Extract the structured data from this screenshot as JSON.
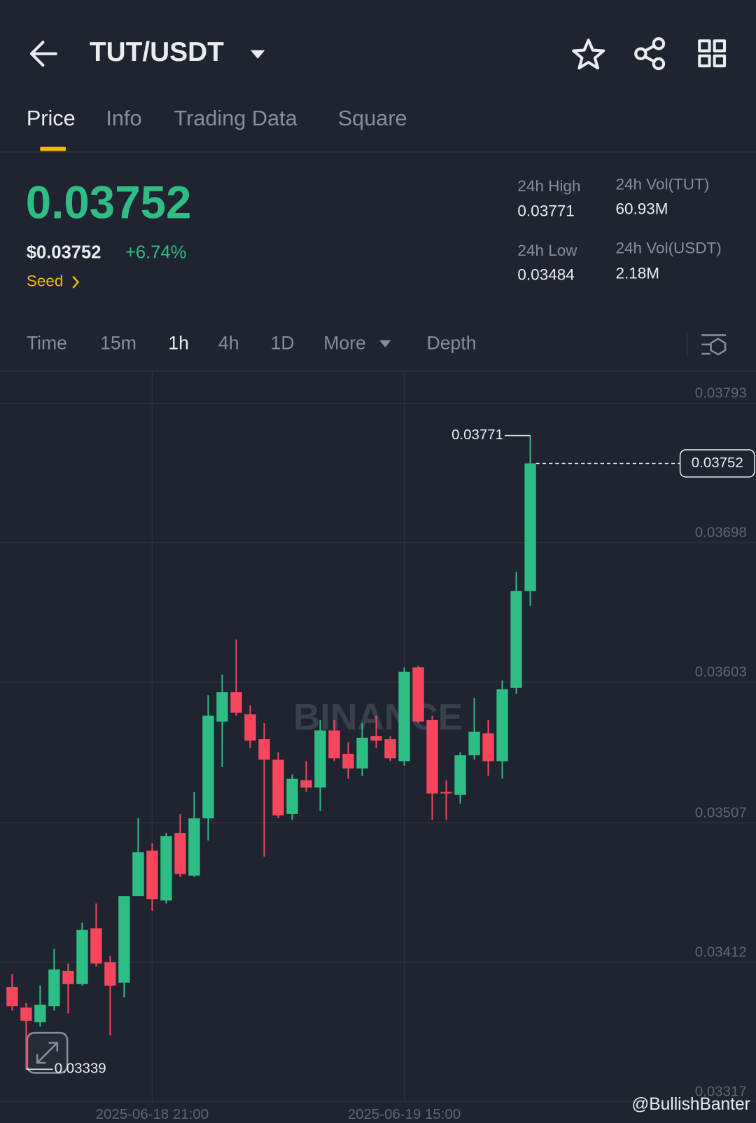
{
  "header": {
    "title": "TUT/USDT",
    "tabs": [
      "Price",
      "Info",
      "Trading Data",
      "Square"
    ]
  },
  "ticker": {
    "price": "0.03752",
    "usd_price": "$0.03752",
    "change": "+6.74%",
    "tag": "Seed",
    "stats": [
      {
        "label": "24h High",
        "value": "0.03771"
      },
      {
        "label": "24h Vol(TUT)",
        "value": "60.93M"
      },
      {
        "label": "24h Low",
        "value": "0.03484"
      },
      {
        "label": "24h Vol(USDT)",
        "value": "2.18M"
      }
    ]
  },
  "intervals": [
    "Time",
    "15m",
    "1h",
    "4h",
    "1D",
    "More",
    "Depth"
  ],
  "chart_data": {
    "type": "candlestick",
    "categories": [
      null,
      null,
      null,
      null,
      null,
      null,
      null,
      null,
      null,
      null,
      "2025-06-18 21:00",
      null,
      null,
      null,
      null,
      null,
      null,
      null,
      null,
      null,
      null,
      null,
      null,
      null,
      null,
      null,
      null,
      null,
      "2025-06-19 15:00",
      null,
      null,
      null,
      null,
      null,
      null,
      null,
      null,
      null
    ],
    "open": [
      0.03395,
      0.03381,
      0.03371,
      0.03382,
      0.03406,
      0.03397,
      0.03435,
      0.03412,
      0.03398,
      0.03457,
      0.03488,
      0.03454,
      0.035,
      0.03471,
      0.0351,
      0.03576,
      0.03596,
      0.03581,
      0.03564,
      0.0355,
      0.03513,
      0.03536,
      0.03531,
      0.0357,
      0.03554,
      0.03544,
      0.03566,
      0.03564,
      0.03549,
      0.03613,
      0.03577,
      0.03528,
      0.03526,
      0.03553,
      0.03568,
      0.03549,
      0.03599,
      0.03665
    ],
    "high": [
      0.03404,
      0.03384,
      0.03396,
      0.03421,
      0.03411,
      0.03439,
      0.03452,
      0.03416,
      0.03457,
      0.0351,
      0.03493,
      0.035,
      0.03513,
      0.03528,
      0.03594,
      0.03608,
      0.03632,
      0.03587,
      0.03575,
      0.03555,
      0.0354,
      0.03549,
      0.03577,
      0.03577,
      0.03562,
      0.03575,
      0.0358,
      0.03566,
      0.03613,
      0.03614,
      0.0358,
      0.03536,
      0.03555,
      0.03592,
      0.03577,
      0.03604,
      0.03678,
      0.03771
    ],
    "low": [
      0.03379,
      0.03339,
      0.03368,
      0.03379,
      0.03377,
      0.03396,
      0.03409,
      0.03362,
      0.03388,
      0.03457,
      0.03447,
      0.03452,
      0.0347,
      0.0347,
      0.03495,
      0.03545,
      0.0358,
      0.03558,
      0.03484,
      0.0351,
      0.03509,
      0.03528,
      0.03515,
      0.03549,
      0.03537,
      0.03539,
      0.03558,
      0.03549,
      0.03546,
      0.03575,
      0.03509,
      0.03509,
      0.0352,
      0.0355,
      0.03539,
      0.03537,
      0.03595,
      0.03655
    ],
    "close": [
      0.03382,
      0.03372,
      0.03383,
      0.03407,
      0.03397,
      0.03434,
      0.03411,
      0.03396,
      0.03457,
      0.03487,
      0.03455,
      0.03498,
      0.03472,
      0.0351,
      0.0358,
      0.03596,
      0.03582,
      0.03563,
      0.0355,
      0.03512,
      0.03537,
      0.03531,
      0.0357,
      0.03551,
      0.03544,
      0.03565,
      0.03563,
      0.03551,
      0.0361,
      0.03576,
      0.03527,
      0.03527,
      0.03553,
      0.03569,
      0.03549,
      0.03598,
      0.03665,
      0.03752
    ],
    "up_color": "#2ebd85",
    "down_color": "#f6465d",
    "ylim": [
      0.03316,
      0.03815
    ],
    "yticks": [
      0.03793,
      0.03698,
      0.03603,
      0.03507,
      0.03412,
      0.03317
    ],
    "grid": true,
    "annotations": {
      "high": 0.03771,
      "low": 0.03339,
      "last": 0.03752
    },
    "watermark": "BINANCE",
    "credit": "@BullishBanter"
  }
}
